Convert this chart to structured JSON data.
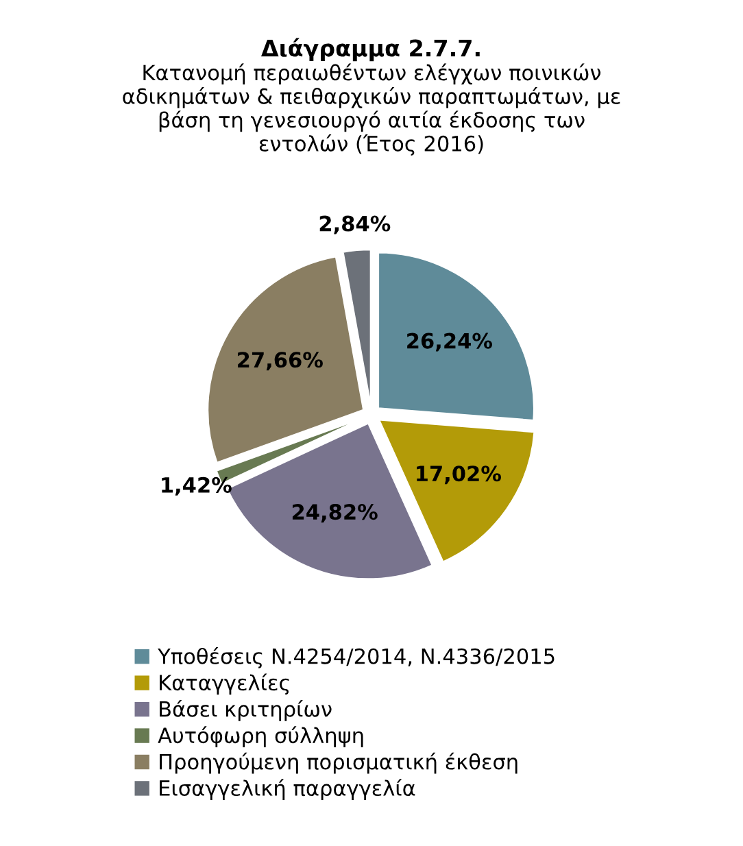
{
  "chart_data": {
    "type": "pie",
    "title": "Διάγραμμα 2.7.7.",
    "subtitle": "Κατανομή περαιωθέντων ελέγχων ποινικών\nαδικημάτων & πειθαρχικών παραπτωμάτων, με\nβάση τη γενεσιουργό αιτία έκδοσης των\nεντολών (Έτος 2016)",
    "categories": [
      "Υποθέσεις Ν.4254/2014, Ν.4336/2015",
      "Καταγγελίες",
      "Βάσει κριτηρίων",
      "Αυτόφωρη σύλληψη",
      "Προηγούμενη πορισματική έκθεση",
      "Εισαγγελική παραγγελία"
    ],
    "values": [
      26.24,
      17.02,
      24.82,
      1.42,
      27.66,
      2.84
    ],
    "value_labels": [
      "26,24%",
      "17,02%",
      "24,82%",
      "1,42%",
      "27,66%",
      "2,84%"
    ],
    "colors": [
      "#5f8b99",
      "#b39b08",
      "#79748e",
      "#687a52",
      "#8a7e62",
      "#6c7179"
    ],
    "legend": "bottom"
  }
}
